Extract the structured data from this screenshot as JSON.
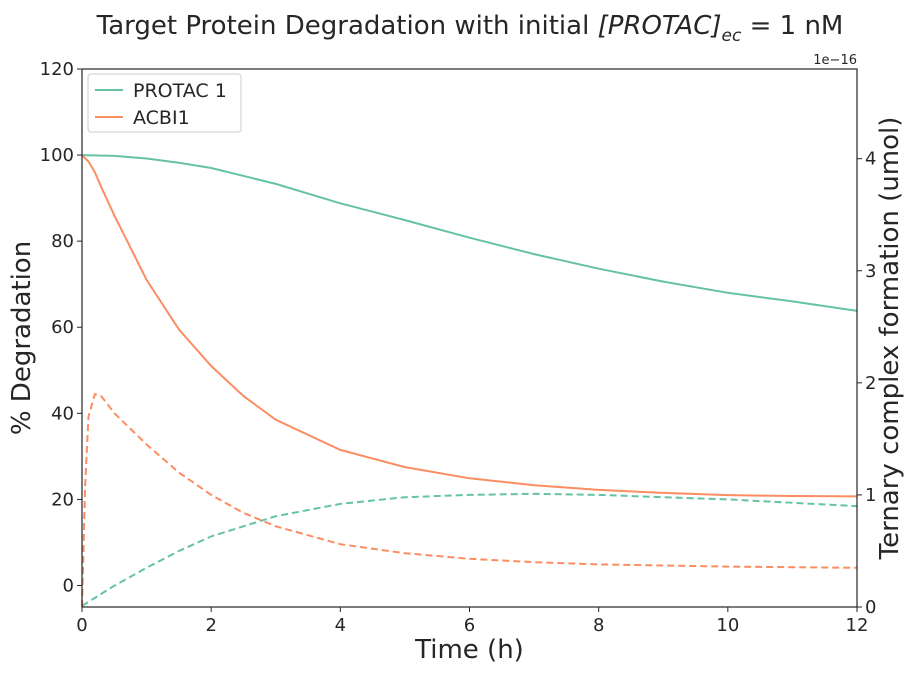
{
  "chart_data": {
    "type": "line",
    "title_prefix": "Target Protein Degradation with initial ",
    "title_math": "[PROTAC]",
    "title_sub": "ec",
    "title_suffix": " = 1 nM",
    "xlabel": "Time (h)",
    "ylabel_left": "% Degradation",
    "ylabel_right": "Ternary complex formation (umol)",
    "right_axis_offset": "1e−16",
    "xlim": [
      0,
      12
    ],
    "ylim_left": [
      -5,
      120
    ],
    "ylim_right": [
      0,
      4.8
    ],
    "xticks": [
      0,
      2,
      4,
      6,
      8,
      10,
      12
    ],
    "yticks_left": [
      0,
      20,
      40,
      60,
      80,
      100,
      120
    ],
    "yticks_right": [
      0,
      1,
      2,
      3,
      4
    ],
    "grid": false,
    "legend_position": "top-left",
    "colors": {
      "PROTAC 1": "#66c2a5",
      "ACBI1": "#fc8d62"
    },
    "series": [
      {
        "name": "PROTAC 1",
        "axis": "left",
        "style": "solid",
        "x": [
          0,
          0.5,
          1,
          1.5,
          2,
          3,
          4,
          5,
          6,
          7,
          8,
          9,
          10,
          11,
          12
        ],
        "y": [
          100,
          99.8,
          99.2,
          98.2,
          97,
          93.3,
          88.8,
          84.9,
          80.8,
          77,
          73.6,
          70.6,
          68,
          66,
          63.8
        ]
      },
      {
        "name": "ACBI1",
        "axis": "left",
        "style": "solid",
        "x": [
          0,
          0.1,
          0.2,
          0.3,
          0.5,
          1,
          1.5,
          2,
          2.5,
          3,
          4,
          5,
          6,
          7,
          8,
          9,
          10,
          11,
          12
        ],
        "y": [
          100,
          98.5,
          96,
          92.5,
          86,
          71,
          59.5,
          51,
          44,
          38.5,
          31.5,
          27.5,
          24.9,
          23.3,
          22.2,
          21.5,
          21,
          20.8,
          20.7
        ]
      },
      {
        "name": "PROTAC 1",
        "axis": "right",
        "style": "dashed",
        "x": [
          0,
          0.5,
          1,
          1.5,
          2,
          3,
          4,
          5,
          6,
          7,
          8,
          9,
          10,
          11,
          12
        ],
        "y": [
          0.01,
          0.19,
          0.35,
          0.5,
          0.63,
          0.81,
          0.92,
          0.98,
          1.0,
          1.01,
          1.0,
          0.98,
          0.96,
          0.93,
          0.9
        ]
      },
      {
        "name": "ACBI1",
        "axis": "right",
        "style": "dashed",
        "x": [
          0,
          0.05,
          0.1,
          0.2,
          0.3,
          0.5,
          1,
          1.5,
          2,
          2.5,
          3,
          4,
          5,
          6,
          7,
          8,
          9,
          10,
          11,
          12
        ],
        "y": [
          0.0,
          1.1,
          1.7,
          1.9,
          1.88,
          1.73,
          1.45,
          1.2,
          1.0,
          0.84,
          0.72,
          0.56,
          0.48,
          0.43,
          0.4,
          0.38,
          0.37,
          0.36,
          0.355,
          0.35
        ]
      }
    ]
  }
}
